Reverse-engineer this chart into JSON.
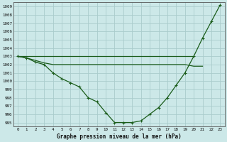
{
  "title": "Graphe pression niveau de la mer (hPa)",
  "background_color": "#cce8e8",
  "grid_color": "#aacccc",
  "line_color": "#1a5c1a",
  "ylim_min": 994.5,
  "ylim_max": 1009.5,
  "xlim_min": -0.5,
  "xlim_max": 23.5,
  "yticks": [
    995,
    996,
    997,
    998,
    999,
    1000,
    1001,
    1002,
    1003,
    1004,
    1005,
    1006,
    1007,
    1008,
    1009
  ],
  "xticks": [
    0,
    1,
    2,
    3,
    4,
    5,
    6,
    7,
    8,
    9,
    10,
    11,
    12,
    13,
    14,
    15,
    16,
    17,
    18,
    19,
    20,
    21,
    22,
    23
  ],
  "curve1_x": [
    0,
    1,
    2,
    3,
    4,
    5,
    6,
    7,
    8,
    9,
    10,
    11,
    12,
    13,
    14,
    15,
    16,
    17,
    18,
    19,
    20,
    21,
    22,
    23
  ],
  "curve1_y": [
    1003,
    1002.8,
    1002.3,
    1002.0,
    1001.0,
    1000.3,
    999.8,
    999.3,
    998.0,
    997.5,
    996.2,
    995.0,
    995.0,
    995.0,
    995.2,
    996.0,
    996.8,
    998.0,
    999.5,
    1001.0,
    1003.0,
    1005.2,
    1007.2,
    1009.2
  ],
  "curve2_x": [
    0,
    1,
    2,
    3,
    4,
    5,
    6,
    7,
    8,
    9,
    10,
    11,
    12,
    13,
    14,
    15,
    16,
    17,
    18,
    19,
    20
  ],
  "curve2_y": [
    1003.0,
    1003.0,
    1003.0,
    1003.0,
    1003.0,
    1003.0,
    1003.0,
    1003.0,
    1003.0,
    1003.0,
    1003.0,
    1003.0,
    1003.0,
    1003.0,
    1003.0,
    1003.0,
    1003.0,
    1003.0,
    1003.0,
    1003.0,
    1003.0
  ],
  "curve3_x": [
    0,
    1,
    2,
    3,
    4,
    5,
    6,
    7,
    8,
    9,
    10,
    11,
    12,
    13,
    14,
    15,
    16,
    17,
    18,
    19,
    20,
    21
  ],
  "curve3_y": [
    1003.0,
    1002.8,
    1002.5,
    1002.2,
    1002.0,
    1002.0,
    1002.0,
    1002.0,
    1002.0,
    1002.0,
    1002.0,
    1002.0,
    1002.0,
    1002.0,
    1002.0,
    1002.0,
    1002.0,
    1002.0,
    1002.0,
    1002.0,
    1001.8,
    1001.8
  ]
}
